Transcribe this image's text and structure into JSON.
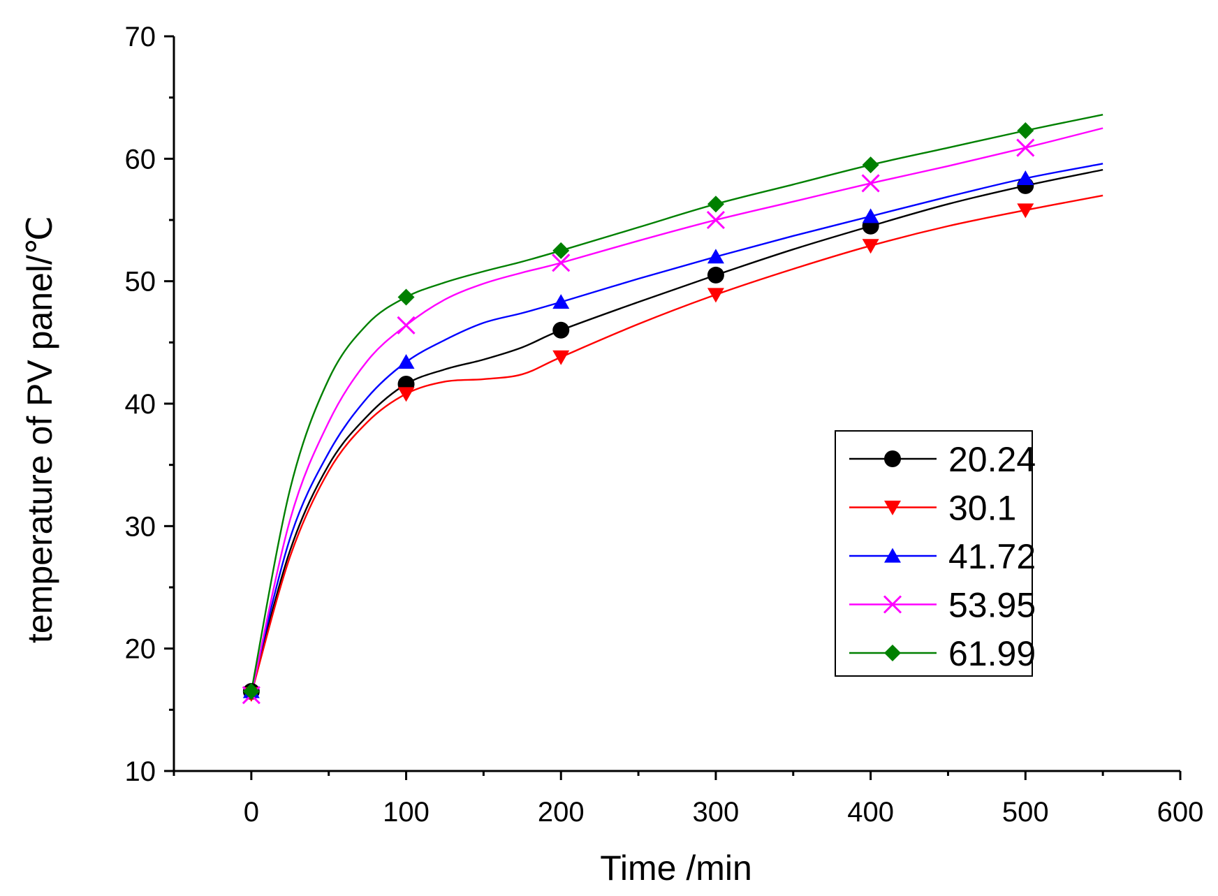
{
  "chart_data": {
    "type": "line",
    "title": "",
    "xlabel": "Time /min",
    "ylabel": "temperature of PV panel/℃",
    "xlim": [
      -50,
      600
    ],
    "ylim": [
      10,
      70
    ],
    "x_ticks": [
      0,
      100,
      200,
      300,
      400,
      500,
      600
    ],
    "y_ticks": [
      10,
      20,
      30,
      40,
      50,
      60,
      70
    ],
    "x_tick_labels": [
      "0",
      "100",
      "200",
      "300",
      "400",
      "500",
      "600"
    ],
    "y_tick_labels": [
      "10",
      "20",
      "30",
      "40",
      "50",
      "60",
      "70"
    ],
    "grid": false,
    "legend_position": "center-right",
    "x": [
      0,
      100,
      200,
      300,
      400,
      500,
      550
    ],
    "series": [
      {
        "name": "20.24",
        "color": "#000000",
        "marker": "circle",
        "values": [
          16.5,
          41.6,
          46.0,
          50.5,
          54.5,
          57.8,
          59.1
        ],
        "control": {
          "x": [
            0,
            25,
            50,
            75,
            100,
            125,
            150,
            175,
            200,
            250,
            300,
            350,
            400,
            450,
            500,
            550
          ],
          "y": [
            16.5,
            28.0,
            35.0,
            39.0,
            41.6,
            42.8,
            43.6,
            44.6,
            46.0,
            48.3,
            50.5,
            52.6,
            54.5,
            56.3,
            57.8,
            59.1
          ]
        }
      },
      {
        "name": "30.1",
        "color": "#ff0000",
        "marker": "triangle-down",
        "values": [
          16.3,
          40.8,
          43.8,
          48.9,
          52.9,
          55.8,
          57.0
        ],
        "control": {
          "x": [
            0,
            25,
            50,
            75,
            100,
            125,
            150,
            175,
            200,
            250,
            300,
            350,
            400,
            450,
            500,
            550
          ],
          "y": [
            16.3,
            27.5,
            34.5,
            38.5,
            40.8,
            41.8,
            42.0,
            42.4,
            43.8,
            46.5,
            48.9,
            51.0,
            52.9,
            54.5,
            55.8,
            57.0
          ]
        }
      },
      {
        "name": "41.72",
        "color": "#0000ff",
        "marker": "triangle-up",
        "values": [
          16.5,
          43.4,
          48.3,
          52.0,
          55.3,
          58.4,
          59.6
        ],
        "control": {
          "x": [
            0,
            25,
            50,
            75,
            100,
            125,
            150,
            175,
            200,
            250,
            300,
            350,
            400,
            450,
            500,
            550
          ],
          "y": [
            16.5,
            29.0,
            36.0,
            40.5,
            43.4,
            45.2,
            46.6,
            47.4,
            48.3,
            50.2,
            52.0,
            53.7,
            55.3,
            56.9,
            58.4,
            59.6
          ]
        }
      },
      {
        "name": "53.95",
        "color": "#ff00ff",
        "marker": "x",
        "values": [
          16.2,
          46.4,
          51.5,
          55.0,
          58.0,
          60.9,
          62.5
        ],
        "control": {
          "x": [
            0,
            25,
            50,
            75,
            100,
            125,
            150,
            175,
            200,
            250,
            300,
            350,
            400,
            450,
            500,
            550
          ],
          "y": [
            16.2,
            30.5,
            38.5,
            43.5,
            46.4,
            48.5,
            49.8,
            50.7,
            51.5,
            53.3,
            55.0,
            56.5,
            58.0,
            59.4,
            60.9,
            62.5
          ]
        }
      },
      {
        "name": "61.99",
        "color": "#008000",
        "marker": "diamond",
        "values": [
          16.5,
          48.7,
          52.5,
          56.3,
          59.5,
          62.3,
          63.6
        ],
        "control": {
          "x": [
            0,
            25,
            50,
            75,
            100,
            125,
            150,
            175,
            200,
            250,
            300,
            350,
            400,
            450,
            500,
            550
          ],
          "y": [
            16.5,
            33.0,
            42.0,
            46.5,
            48.7,
            49.9,
            50.8,
            51.6,
            52.5,
            54.4,
            56.3,
            57.9,
            59.5,
            60.9,
            62.3,
            63.6
          ]
        }
      }
    ]
  }
}
